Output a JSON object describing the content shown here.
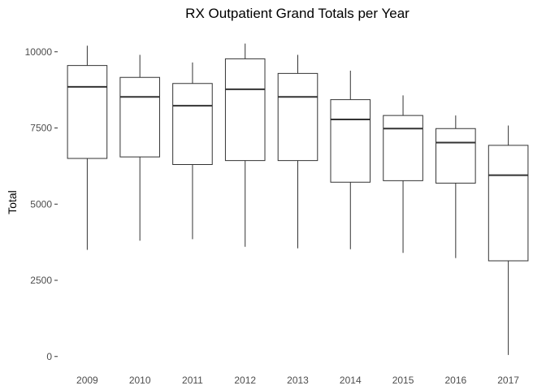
{
  "chart_data": {
    "type": "boxplot",
    "title": "RX Outpatient Grand Totals per Year",
    "xlabel": "",
    "ylabel": "Total",
    "categories": [
      "2009",
      "2010",
      "2011",
      "2012",
      "2013",
      "2014",
      "2015",
      "2016",
      "2017"
    ],
    "boxes": [
      {
        "category": "2009",
        "min": 3500,
        "q1": 6500,
        "median": 8850,
        "q3": 9550,
        "max": 10200
      },
      {
        "category": "2010",
        "min": 3800,
        "q1": 6550,
        "median": 8520,
        "q3": 9160,
        "max": 9900
      },
      {
        "category": "2011",
        "min": 3850,
        "q1": 6300,
        "median": 8230,
        "q3": 8960,
        "max": 9650
      },
      {
        "category": "2012",
        "min": 3600,
        "q1": 6430,
        "median": 8770,
        "q3": 9770,
        "max": 10270
      },
      {
        "category": "2013",
        "min": 3550,
        "q1": 6430,
        "median": 8520,
        "q3": 9290,
        "max": 9900
      },
      {
        "category": "2014",
        "min": 3520,
        "q1": 5720,
        "median": 7780,
        "q3": 8430,
        "max": 9380
      },
      {
        "category": "2015",
        "min": 3400,
        "q1": 5770,
        "median": 7480,
        "q3": 7910,
        "max": 8570
      },
      {
        "category": "2016",
        "min": 3230,
        "q1": 5690,
        "median": 7020,
        "q3": 7480,
        "max": 7910
      },
      {
        "category": "2017",
        "min": 50,
        "q1": 3140,
        "median": 5950,
        "q3": 6930,
        "max": 7580
      }
    ],
    "yticks": [
      0,
      2500,
      5000,
      7500,
      10000
    ],
    "ytick_labels": [
      "0",
      "2500",
      "5000",
      "7500",
      "10000"
    ],
    "ylim": [
      -300,
      10500
    ],
    "grid": false,
    "legend": "none",
    "colors": {
      "box_stroke": "#333333",
      "box_fill": "#ffffff",
      "tick_text": "#4d4d4d",
      "title": "#000000"
    }
  }
}
